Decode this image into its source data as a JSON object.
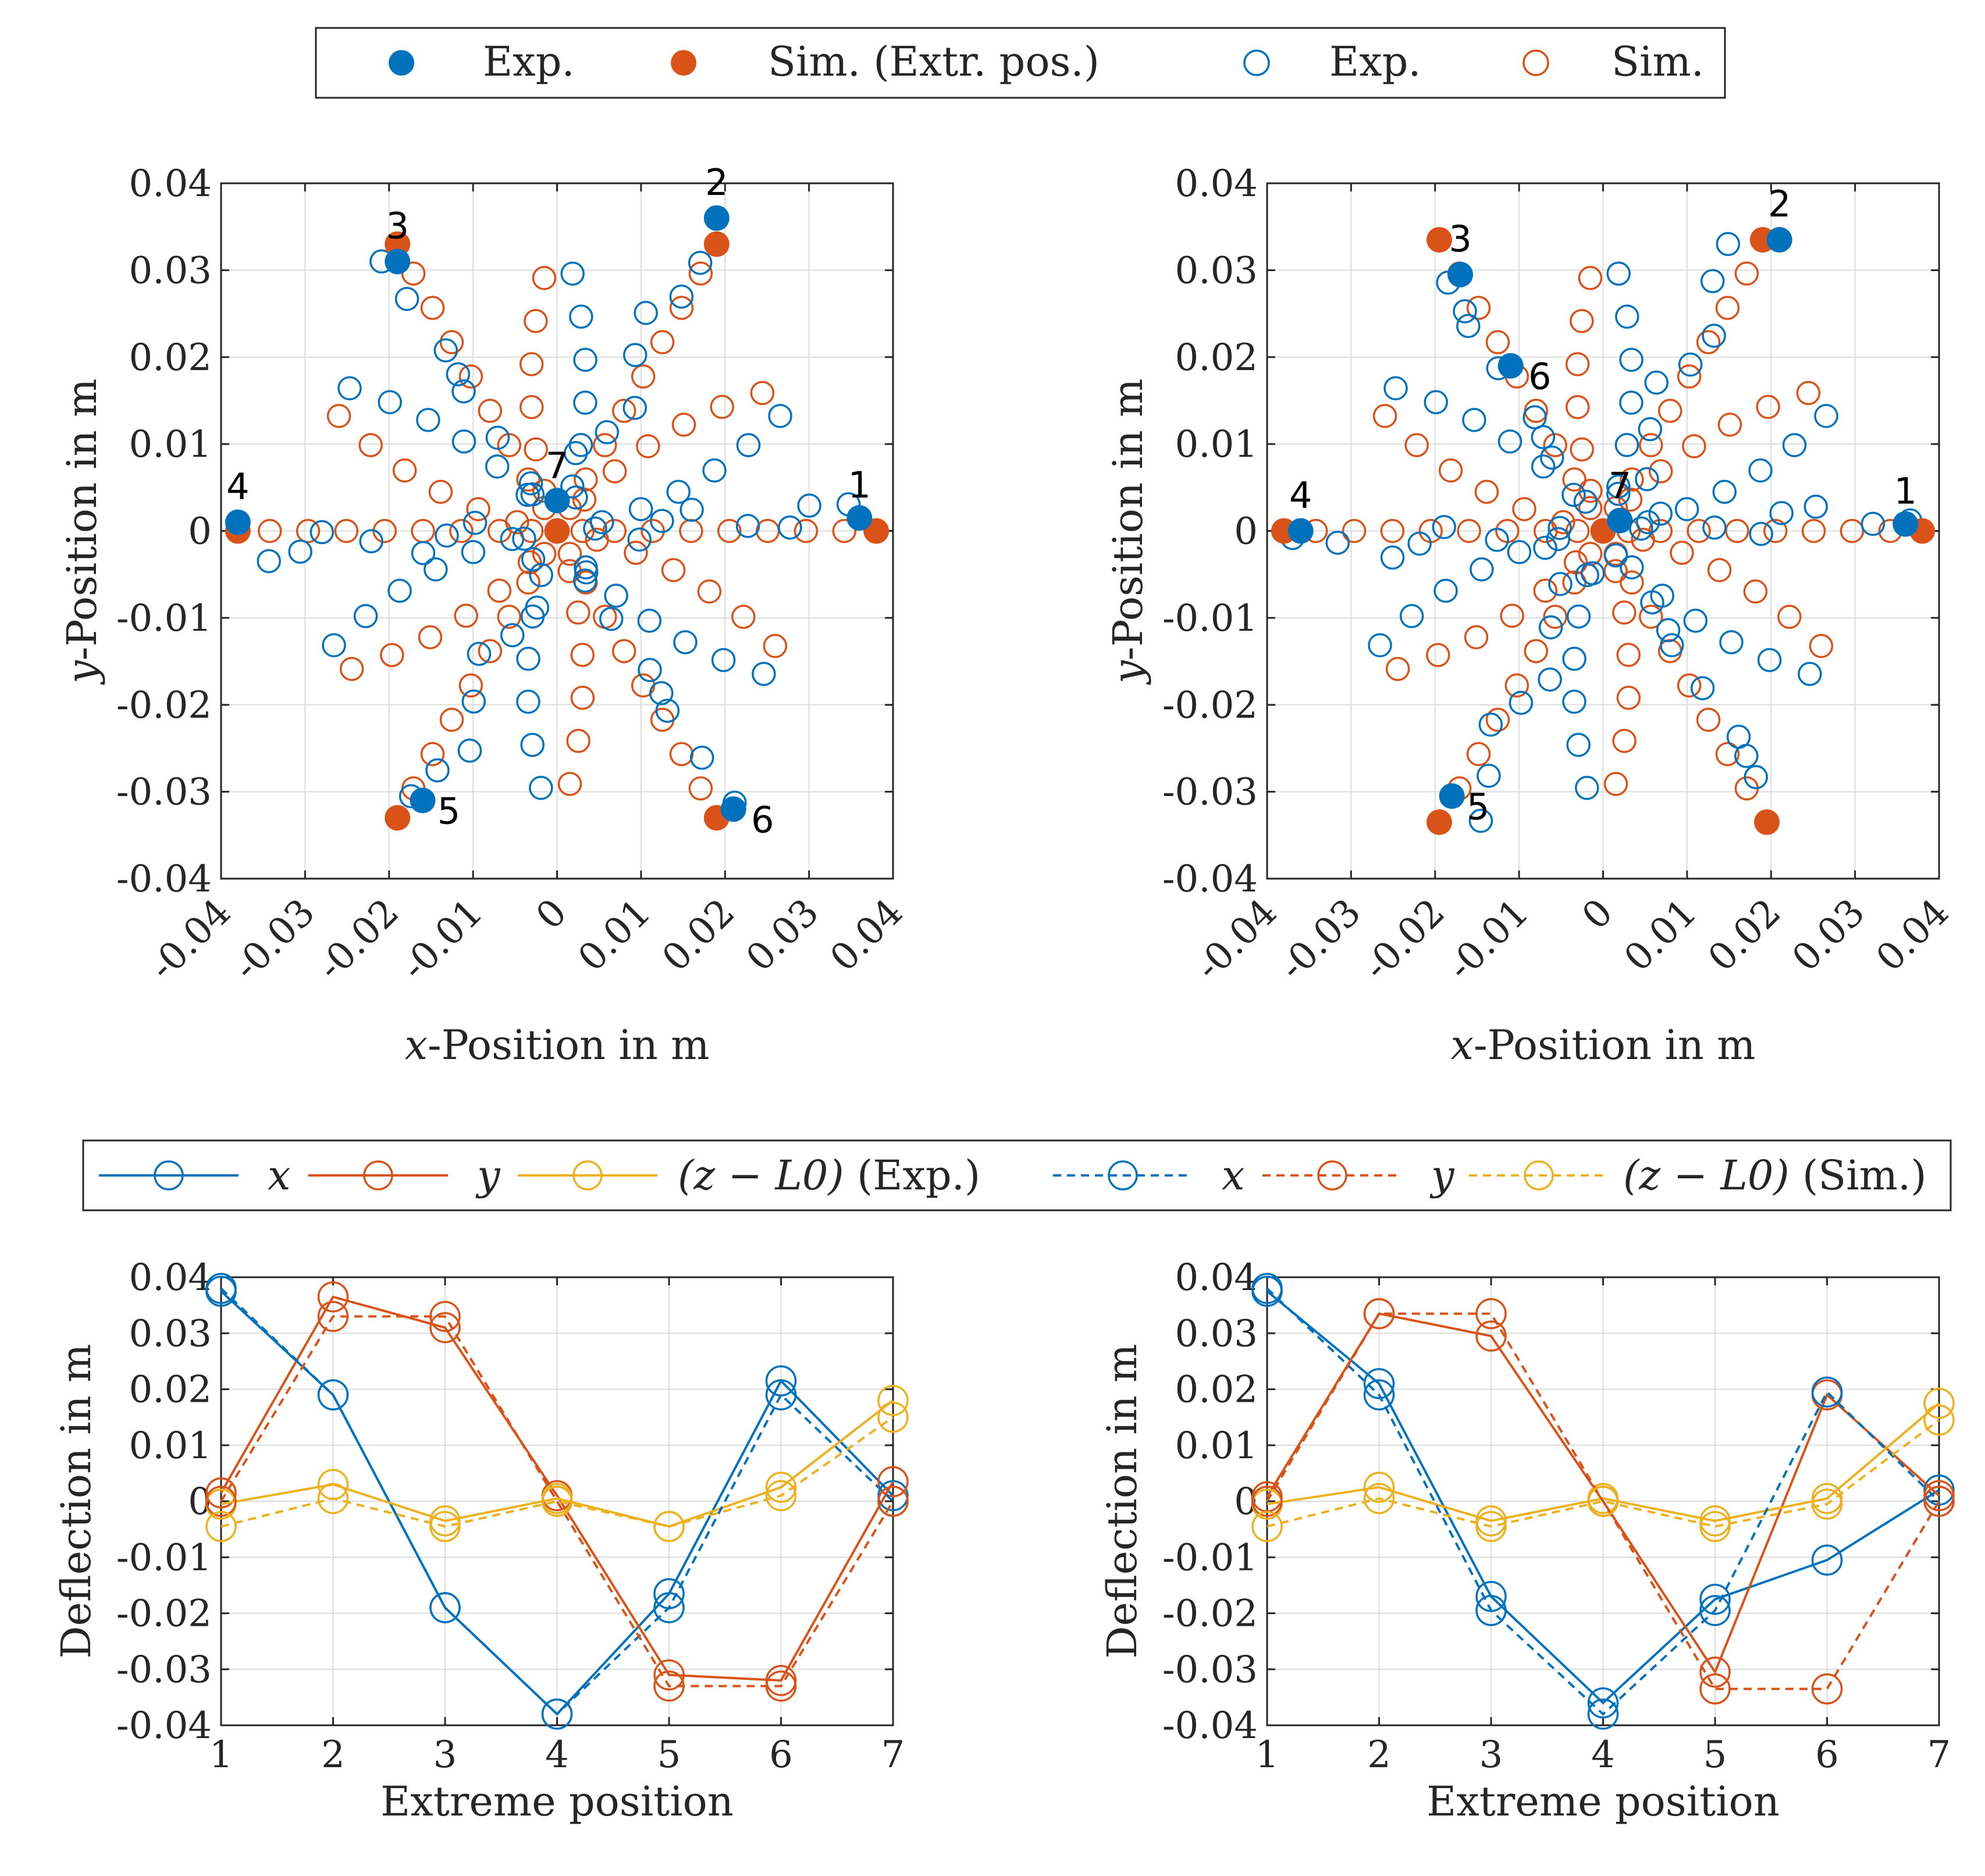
{
  "colors": {
    "blue": "#0072BD",
    "orange": "#D95319",
    "yellow": "#EDB120",
    "axis": "#262626",
    "grid": "#dcdcdc"
  },
  "legend_top": {
    "items": [
      {
        "label": "Exp.",
        "marker": "filled",
        "color": "blue"
      },
      {
        "label": "Sim. (Extr. pos.)",
        "marker": "filled",
        "color": "orange"
      },
      {
        "label": "Exp.",
        "marker": "open",
        "color": "blue"
      },
      {
        "label": "Sim.",
        "marker": "open",
        "color": "orange"
      }
    ]
  },
  "legend_bottom": {
    "items": [
      {
        "var": "x",
        "style": "solid",
        "color": "blue"
      },
      {
        "var": "y",
        "style": "solid",
        "color": "orange"
      },
      {
        "var": "(z − L0)",
        "suffix": "(Exp.)",
        "style": "solid",
        "color": "yellow"
      },
      {
        "var": "x",
        "style": "dashed",
        "color": "blue"
      },
      {
        "var": "y",
        "style": "dashed",
        "color": "orange"
      },
      {
        "var": "(z − L0)",
        "suffix": "(Sim.)",
        "style": "dashed",
        "color": "yellow"
      }
    ]
  },
  "chart_data": [
    {
      "id": "scatter-left",
      "type": "scatter",
      "xlabel": "x-Position in m",
      "ylabel": "y-Position in m",
      "xlim": [
        -0.04,
        0.04
      ],
      "ylim": [
        -0.04,
        0.04
      ],
      "xticks": [
        "-0.04",
        "-0.03",
        "-0.02",
        "-0.01",
        "0",
        "0.01",
        "0.02",
        "0.03",
        "0.04"
      ],
      "yticks": [
        "0.04",
        "0.03",
        "0.02",
        "0.01",
        "0",
        "-0.01",
        "-0.02",
        "-0.03",
        "-0.04"
      ],
      "grid": true,
      "pattern": "star-with-radial-legs",
      "extreme_exp": [
        [
          0.036,
          0.0015
        ],
        [
          0.019,
          0.036
        ],
        [
          -0.019,
          0.031
        ],
        [
          -0.038,
          0.001
        ],
        [
          -0.016,
          -0.031
        ],
        [
          0.021,
          -0.032
        ],
        [
          0.0,
          0.0035
        ]
      ],
      "extreme_sim": [
        [
          0.038,
          0.0
        ],
        [
          0.019,
          0.033
        ],
        [
          -0.019,
          0.033
        ],
        [
          -0.038,
          0.0
        ],
        [
          -0.019,
          -0.033
        ],
        [
          0.019,
          -0.033
        ],
        [
          0.0,
          0.0
        ]
      ],
      "extreme_labels": [
        "1",
        "2",
        "3",
        "4",
        "5",
        "6",
        "7"
      ]
    },
    {
      "id": "scatter-right",
      "type": "scatter",
      "xlabel": "x-Position in m",
      "ylabel": "y-Position in m",
      "xlim": [
        -0.04,
        0.04
      ],
      "ylim": [
        -0.04,
        0.04
      ],
      "xticks": [
        "-0.04",
        "-0.03",
        "-0.02",
        "-0.01",
        "0",
        "0.01",
        "0.02",
        "0.03",
        "0.04"
      ],
      "yticks": [
        "0.04",
        "0.03",
        "0.02",
        "0.01",
        "0",
        "-0.01",
        "-0.02",
        "-0.03",
        "-0.04"
      ],
      "grid": true,
      "pattern": "star-with-radial-legs",
      "extreme_exp": [
        [
          0.036,
          0.0008
        ],
        [
          0.021,
          0.0335
        ],
        [
          -0.017,
          0.0295
        ],
        [
          -0.036,
          0.0
        ],
        [
          -0.018,
          -0.0305
        ],
        [
          -0.011,
          0.019
        ],
        [
          0.002,
          0.0012
        ]
      ],
      "extreme_sim": [
        [
          0.038,
          0.0
        ],
        [
          0.019,
          0.0335
        ],
        [
          -0.0195,
          0.0335
        ],
        [
          -0.038,
          0.0
        ],
        [
          -0.0195,
          -0.0335
        ],
        [
          0.0195,
          -0.0335
        ],
        [
          0.0,
          0.0
        ]
      ],
      "extreme_labels": [
        "1",
        "2",
        "3",
        "4",
        "5",
        "6",
        "7"
      ]
    },
    {
      "id": "line-left",
      "type": "line",
      "xlabel": "Extreme position",
      "ylabel": "Deflection in m",
      "xlim": [
        1,
        7
      ],
      "ylim": [
        -0.04,
        0.04
      ],
      "categories": [
        1,
        2,
        3,
        4,
        5,
        6,
        7
      ],
      "xticks": [
        "1",
        "2",
        "3",
        "4",
        "5",
        "6",
        "7"
      ],
      "yticks": [
        "0.04",
        "0.03",
        "0.02",
        "0.01",
        "0",
        "-0.01",
        "-0.02",
        "-0.03",
        "-0.04"
      ],
      "grid": true,
      "series": [
        {
          "name": "x (Exp.)",
          "color": "blue",
          "style": "solid",
          "values": [
            0.0375,
            0.019,
            -0.019,
            -0.038,
            -0.0165,
            0.0215,
            0.001
          ]
        },
        {
          "name": "y (Exp.)",
          "color": "orange",
          "style": "solid",
          "values": [
            0.0015,
            0.0365,
            0.031,
            0.001,
            -0.031,
            -0.032,
            0.0035
          ]
        },
        {
          "name": "(z − L0) (Exp.)",
          "color": "yellow",
          "style": "solid",
          "values": [
            -0.0005,
            0.003,
            -0.0035,
            0.0005,
            -0.0045,
            0.0025,
            0.018
          ]
        },
        {
          "name": "x (Sim.)",
          "color": "blue",
          "style": "dashed",
          "values": [
            0.038,
            0.019,
            -0.019,
            -0.038,
            -0.019,
            0.019,
            0.0
          ]
        },
        {
          "name": "y (Sim.)",
          "color": "orange",
          "style": "dashed",
          "values": [
            0.0,
            0.033,
            0.033,
            0.0,
            -0.033,
            -0.033,
            0.0
          ]
        },
        {
          "name": "(z − L0) (Sim.)",
          "color": "yellow",
          "style": "dashed",
          "values": [
            -0.0045,
            0.0005,
            -0.0045,
            0.0,
            -0.0045,
            0.001,
            0.015
          ]
        }
      ]
    },
    {
      "id": "line-right",
      "type": "line",
      "xlabel": "Extreme position",
      "ylabel": "Deflection in m",
      "xlim": [
        1,
        7
      ],
      "ylim": [
        -0.04,
        0.04
      ],
      "categories": [
        1,
        2,
        3,
        4,
        5,
        6,
        7
      ],
      "xticks": [
        "1",
        "2",
        "3",
        "4",
        "5",
        "6",
        "7"
      ],
      "yticks": [
        "0.04",
        "0.03",
        "0.02",
        "0.01",
        "0",
        "-0.01",
        "-0.02",
        "-0.03",
        "-0.04"
      ],
      "grid": true,
      "series": [
        {
          "name": "x (Exp.)",
          "color": "blue",
          "style": "solid",
          "values": [
            0.0375,
            0.021,
            -0.017,
            -0.036,
            -0.0175,
            -0.0105,
            0.002
          ]
        },
        {
          "name": "y (Exp.)",
          "color": "orange",
          "style": "solid",
          "values": [
            0.0008,
            0.0335,
            0.0295,
            0.0,
            -0.0305,
            0.019,
            0.001
          ]
        },
        {
          "name": "(z − L0) (Exp.)",
          "color": "yellow",
          "style": "solid",
          "values": [
            -0.0005,
            0.0025,
            -0.0035,
            0.0005,
            -0.0035,
            0.0005,
            0.0175
          ]
        },
        {
          "name": "x (Sim.)",
          "color": "blue",
          "style": "dashed",
          "values": [
            0.038,
            0.019,
            -0.0195,
            -0.038,
            -0.0195,
            0.0195,
            0.0
          ]
        },
        {
          "name": "y (Sim.)",
          "color": "orange",
          "style": "dashed",
          "values": [
            0.0,
            0.0335,
            0.0335,
            0.0,
            -0.0335,
            -0.0335,
            0.0
          ]
        },
        {
          "name": "(z − L0) (Sim.)",
          "color": "yellow",
          "style": "dashed",
          "values": [
            -0.0045,
            0.0005,
            -0.0045,
            0.0,
            -0.0045,
            -0.0005,
            0.0145
          ]
        }
      ]
    }
  ]
}
